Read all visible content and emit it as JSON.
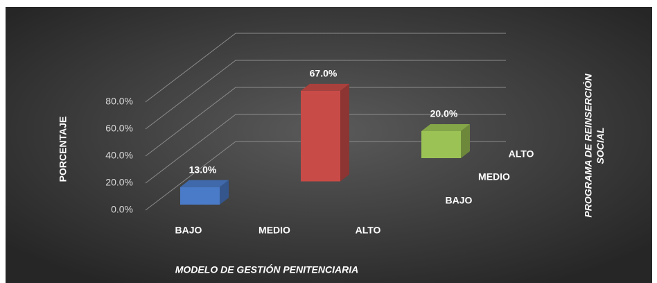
{
  "chart_data": {
    "type": "bar3d",
    "x_label": "MODELO DE GESTIÓN PENITENCIARIA",
    "y_label": "PORCENTAJE",
    "z_label": "PROGRAMA DE REINSERCIÓN SOCIAL",
    "categories": [
      "BAJO",
      "MEDIO",
      "ALTO"
    ],
    "depth_categories": [
      "BAJO",
      "MEDIO",
      "ALTO"
    ],
    "values": [
      13,
      67,
      20
    ],
    "value_labels": [
      "13.0%",
      "67.0%",
      "20.0%"
    ],
    "colors": [
      "#4a7bc8",
      "#c84b47",
      "#9bc255"
    ],
    "ylim": [
      0,
      80
    ],
    "yticks": [
      {
        "value": 0,
        "label": "0.0%"
      },
      {
        "value": 20,
        "label": "20.0%"
      },
      {
        "value": 40,
        "label": "40.0%"
      },
      {
        "value": 60,
        "label": "60.0%"
      },
      {
        "value": 80,
        "label": "80.0%"
      }
    ],
    "grid": true
  }
}
